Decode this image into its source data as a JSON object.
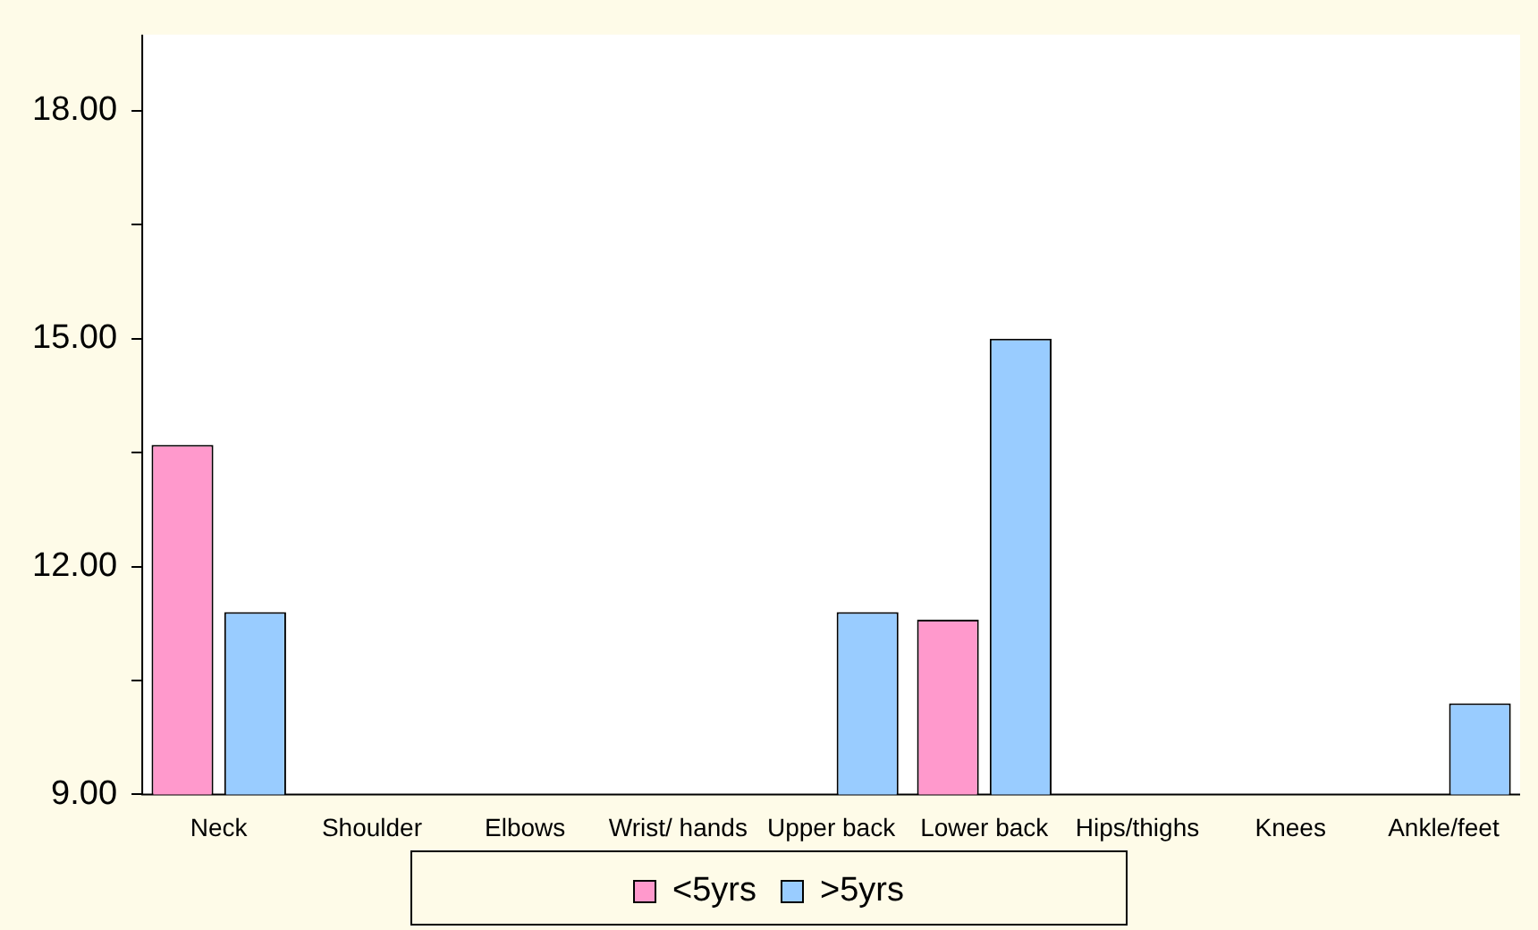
{
  "chart_data": {
    "type": "bar",
    "categories": [
      "Neck",
      "Shoulder",
      "Elbows",
      "Wrist/ hands",
      "Upper back",
      "Lower back",
      "Hips/thighs",
      "Knees",
      "Ankle/feet"
    ],
    "series": [
      {
        "name": "<5yrs",
        "color": "#ff99cc",
        "values": [
          13.6,
          null,
          null,
          null,
          null,
          11.3,
          null,
          null,
          null
        ]
      },
      {
        "name": ">5yrs",
        "color": "#99ccff",
        "values": [
          11.4,
          null,
          null,
          null,
          11.4,
          15.0,
          null,
          null,
          10.2
        ]
      }
    ],
    "ylim": [
      9,
      19
    ],
    "yticks": [
      {
        "value": 9,
        "label": "9.00"
      },
      {
        "value": 10.5,
        "label": null
      },
      {
        "value": 12,
        "label": "12.00"
      },
      {
        "value": 13.5,
        "label": null
      },
      {
        "value": 15,
        "label": "15.00"
      },
      {
        "value": 16.5,
        "label": null
      },
      {
        "value": 18,
        "label": "18.00"
      }
    ],
    "grid": false,
    "legend": "bottom"
  }
}
